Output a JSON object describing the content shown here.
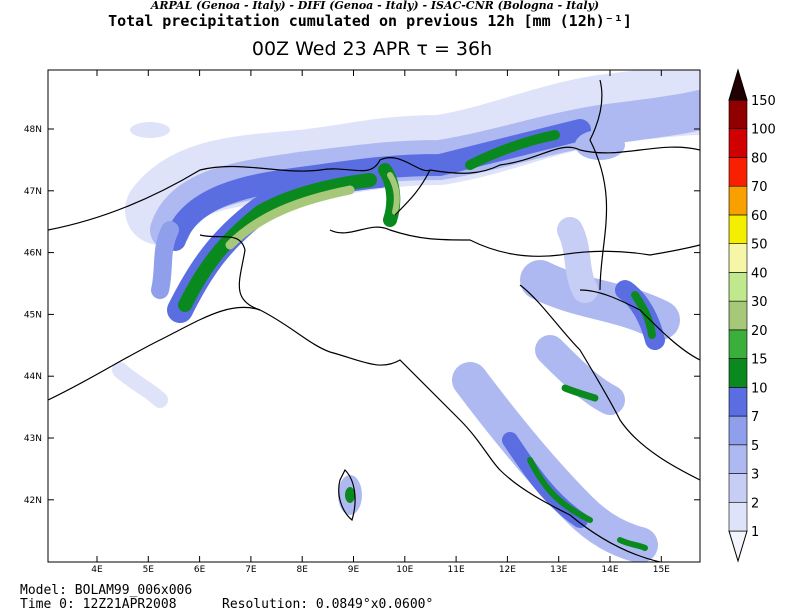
{
  "header": {
    "institutions": "ARPAL (Genoa - Italy)  -  DIFI (Genoa - Italy)  -  ISAC-CNR (Bologna - Italy)",
    "title": "Total precipitation cumulated on previous 12h [mm (12h)⁻¹]",
    "subtitle": "00Z Wed 23 APR   τ = 36h"
  },
  "map": {
    "lon_labels": [
      "4E",
      "5E",
      "6E",
      "7E",
      "8E",
      "9E",
      "10E",
      "11E",
      "12E",
      "13E",
      "14E",
      "15E"
    ],
    "lat_labels": [
      "48N",
      "47N",
      "46N",
      "45N",
      "44N",
      "43N",
      "42N"
    ]
  },
  "colorbar": {
    "levels": [
      1,
      2,
      3,
      5,
      7,
      10,
      15,
      20,
      30,
      40,
      50,
      60,
      70,
      80,
      100,
      150
    ],
    "colors": [
      "#f4f4fc",
      "#dfe3fa",
      "#c7cef5",
      "#aeb9f1",
      "#8f9fec",
      "#5a6ee2",
      "#0a8a1e",
      "#3cae3c",
      "#a6c878",
      "#bfe98c",
      "#f6f6a8",
      "#f4ee00",
      "#f8a000",
      "#f82000",
      "#d00000",
      "#900000",
      "#200000"
    ]
  },
  "footer": {
    "model": "Model: BOLAM99_006x006",
    "time": "Time 0: 12Z21APR2008",
    "resolution": "Resolution: 0.0849°x0.0600°"
  }
}
